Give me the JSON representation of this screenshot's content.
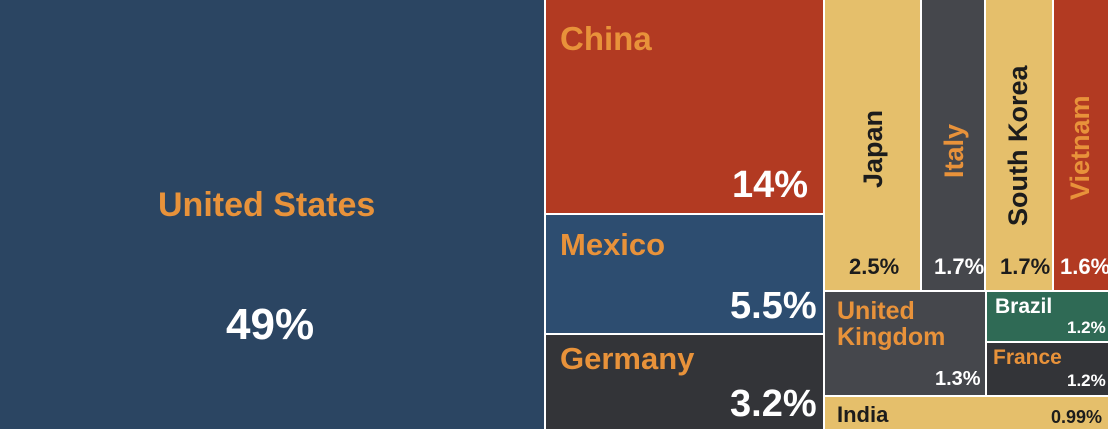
{
  "chart_data": {
    "type": "treemap",
    "title": "",
    "items": [
      {
        "name": "United States",
        "value": 49,
        "label": "49%",
        "color": "#2b4562"
      },
      {
        "name": "China",
        "value": 14,
        "label": "14%",
        "color": "#b23a22"
      },
      {
        "name": "Mexico",
        "value": 5.5,
        "label": "5.5%",
        "color": "#2d4d70"
      },
      {
        "name": "Germany",
        "value": 3.2,
        "label": "3.2%",
        "color": "#333438"
      },
      {
        "name": "Japan",
        "value": 2.5,
        "label": "2.5%",
        "color": "#e5bf6b"
      },
      {
        "name": "Italy",
        "value": 1.7,
        "label": "1.7%",
        "color": "#45474c"
      },
      {
        "name": "South Korea",
        "value": 1.7,
        "label": "1.7%",
        "color": "#e5bf6b"
      },
      {
        "name": "Vietnam",
        "value": 1.6,
        "label": "1.6%",
        "color": "#b23a22"
      },
      {
        "name": "United\nKingdom",
        "value": 1.3,
        "label": "1.3%",
        "color": "#45474c"
      },
      {
        "name": "Brazil",
        "value": 1.2,
        "label": "1.2%",
        "color": "#2f6a55"
      },
      {
        "name": "France",
        "value": 1.2,
        "label": "1.2%",
        "color": "#333438"
      },
      {
        "name": "India",
        "value": 0.99,
        "label": "0.99%",
        "color": "#e5bf6b"
      }
    ]
  }
}
